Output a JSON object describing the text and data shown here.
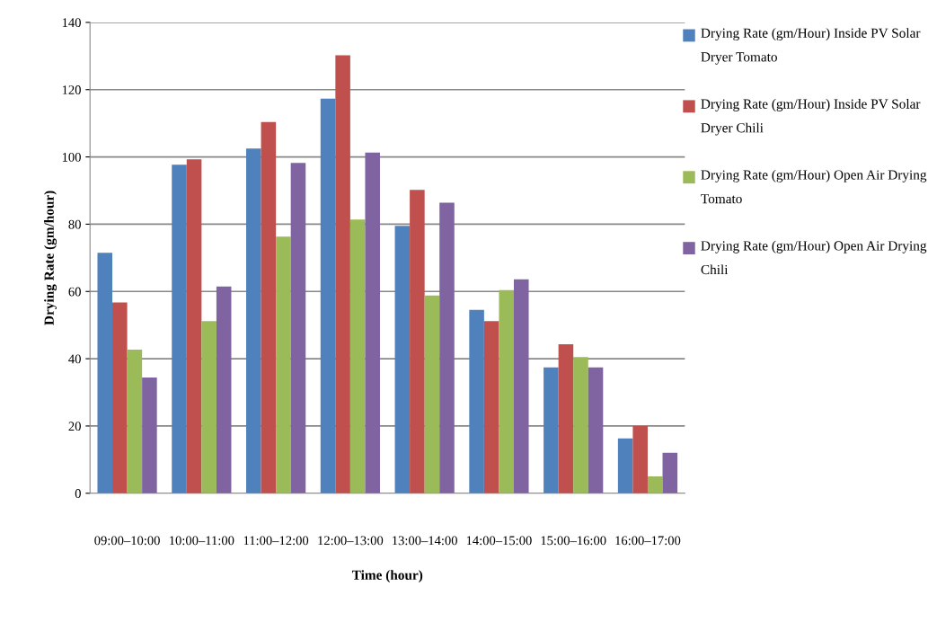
{
  "chart_data": {
    "type": "bar",
    "xlabel": "Time (hour)",
    "ylabel": "Drying Rate (gm/hour)",
    "categories": [
      "09:00–10:00",
      "10:00–11:00",
      "11:00–12:00",
      "12:00–13:00",
      "13:00–14:00",
      "14:00–15:00",
      "15:00–16:00",
      "16:00–17:00"
    ],
    "series": [
      {
        "name": "Drying Rate (gm/Hour) Inside PV Solar Dryer Tomato",
        "color": "#4f81bd",
        "values": [
          71.5,
          97.7,
          102.5,
          117.3,
          79.5,
          54.5,
          37.4,
          16.3
        ]
      },
      {
        "name": "Drying Rate (gm/Hour) Inside PV Solar Dryer Chili",
        "color": "#c0504d",
        "values": [
          56.7,
          99.3,
          110.4,
          130.2,
          90.2,
          51.2,
          44.3,
          20
        ]
      },
      {
        "name": "Drying Rate (gm/Hour) Open Air Drying Tomato",
        "color": "#9bbb59",
        "values": [
          42.7,
          51.2,
          76.3,
          81.4,
          58.8,
          60.4,
          40.5,
          5
        ]
      },
      {
        "name": "Drying Rate (gm/Hour) Open Air Drying Chili",
        "color": "#8064a2",
        "values": [
          34.4,
          61.5,
          98.2,
          101.3,
          86.4,
          63.6,
          37.4,
          12
        ]
      }
    ],
    "ylim": [
      0,
      140
    ],
    "yticks": [
      0,
      20,
      40,
      60,
      80,
      100,
      120,
      140
    ],
    "grid": "y",
    "legend": "top right"
  }
}
